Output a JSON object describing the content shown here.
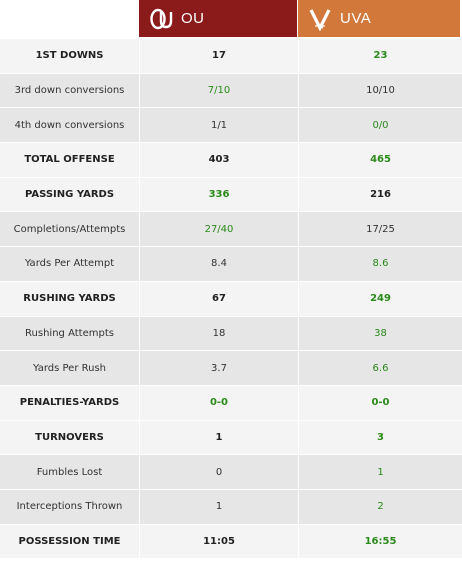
{
  "teams": {
    "ou": {
      "name": "OU",
      "color": "#8b1a1a",
      "logo_icon": "ou-interlocking-logo-icon"
    },
    "uva": {
      "name": "UVA",
      "color": "#d2783a",
      "logo_icon": "uva-v-logo-icon"
    }
  },
  "colors": {
    "better_value": "#2a8a1a"
  },
  "rows": [
    {
      "label": "1ST DOWNS",
      "type": "major",
      "ou": "17",
      "uva": "23",
      "better": "uva"
    },
    {
      "label": "3rd down conversions",
      "type": "minor",
      "ou": "7/10",
      "uva": "10/10",
      "better": "ou"
    },
    {
      "label": "4th down conversions",
      "type": "minor",
      "ou": "1/1",
      "uva": "0/0",
      "better": "uva"
    },
    {
      "label": "TOTAL OFFENSE",
      "type": "major",
      "ou": "403",
      "uva": "465",
      "better": "uva"
    },
    {
      "label": "PASSING YARDS",
      "type": "major",
      "ou": "336",
      "uva": "216",
      "better": "ou"
    },
    {
      "label": "Completions/Attempts",
      "type": "minor",
      "ou": "27/40",
      "uva": "17/25",
      "better": "ou"
    },
    {
      "label": "Yards Per Attempt",
      "type": "minor",
      "ou": "8.4",
      "uva": "8.6",
      "better": "uva"
    },
    {
      "label": "RUSHING YARDS",
      "type": "major",
      "ou": "67",
      "uva": "249",
      "better": "uva"
    },
    {
      "label": "Rushing Attempts",
      "type": "minor",
      "ou": "18",
      "uva": "38",
      "better": "uva"
    },
    {
      "label": "Yards Per Rush",
      "type": "minor",
      "ou": "3.7",
      "uva": "6.6",
      "better": "uva"
    },
    {
      "label": "PENALTIES-YARDS",
      "type": "major",
      "ou": "0-0",
      "uva": "0-0",
      "better": "both"
    },
    {
      "label": "TURNOVERS",
      "type": "major",
      "ou": "1",
      "uva": "3",
      "better": "uva"
    },
    {
      "label": "Fumbles Lost",
      "type": "minor",
      "ou": "0",
      "uva": "1",
      "better": "uva"
    },
    {
      "label": "Interceptions Thrown",
      "type": "minor",
      "ou": "1",
      "uva": "2",
      "better": "uva"
    },
    {
      "label": "POSSESSION TIME",
      "type": "major",
      "ou": "11:05",
      "uva": "16:55",
      "better": "uva"
    }
  ]
}
